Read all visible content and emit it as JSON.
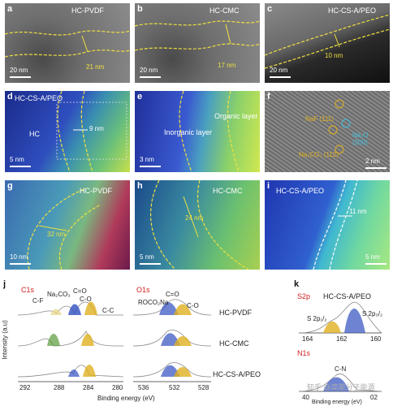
{
  "panels": {
    "a": {
      "label": "a",
      "title": "HC-PVDF",
      "measure": "21 nm",
      "scale": "20 nm"
    },
    "b": {
      "label": "b",
      "title": "HC-CMC",
      "measure": "17 nm",
      "scale": "20 nm"
    },
    "c": {
      "label": "c",
      "title": "HC-CS-A/PEO",
      "measure": "10 nm",
      "scale": "20 nm"
    },
    "d": {
      "label": "d",
      "title": "HC-CS-A/PEO",
      "region": "HC",
      "measure": "9 nm",
      "scale": "5 nm"
    },
    "e": {
      "label": "e",
      "organic": "Organic layer",
      "inorganic": "Inorganic layer",
      "scale": "3 nm"
    },
    "f": {
      "label": "f",
      "naf": "NaF (111)",
      "na2o": "Na₂O (200)",
      "na2co3": "Na₂CO₃ (112)",
      "scale": "2 nm"
    },
    "g": {
      "label": "g",
      "title": "HC-PVDF",
      "measure": "32 nm",
      "scale": "10 nm"
    },
    "h": {
      "label": "h",
      "title": "HC-CMC",
      "measure": "24 nm",
      "scale": "5 nm"
    },
    "i": {
      "label": "i",
      "title": "HC-CS-A/PEO",
      "measure": "11 nm",
      "scale": "5 nm"
    }
  },
  "xps": {
    "j_label": "j",
    "k_label": "k",
    "c1s": "C1s",
    "o1s": "O1s",
    "s2p": "S2p",
    "n1s": "N1s",
    "ylabel": "Intensity (a.u)",
    "xlabel": "Binding energy (eV)",
    "c1s_peaks": [
      "C-F",
      "Na₂CO₃",
      "C=O",
      "C-O",
      "C-C"
    ],
    "o1s_peaks": [
      "ROCO₂Na",
      "C=O",
      "C-O"
    ],
    "s2p_peaks": [
      "S 2p₁/₂",
      "S 2p₃/₂"
    ],
    "n1s_peak": "C-N",
    "c1s_ticks": [
      "292",
      "288",
      "284",
      "280"
    ],
    "o1s_ticks": [
      "536",
      "532",
      "528"
    ],
    "s2p_ticks": [
      "164",
      "162",
      "160"
    ],
    "samples": [
      "HC-PVDF",
      "HC-CMC",
      "HC-CS-A/PEO"
    ],
    "k_sample": "HC-CS-A/PEO",
    "watermark": "知乎 @高能分子能源",
    "n1s_tick_left": "40",
    "n1s_tick_right": "02"
  },
  "colors": {
    "yellow": "#f0e040",
    "red": "#d02020",
    "blue": "#3050c0",
    "gold": "#e0b020",
    "green": "#5a9a3a"
  }
}
